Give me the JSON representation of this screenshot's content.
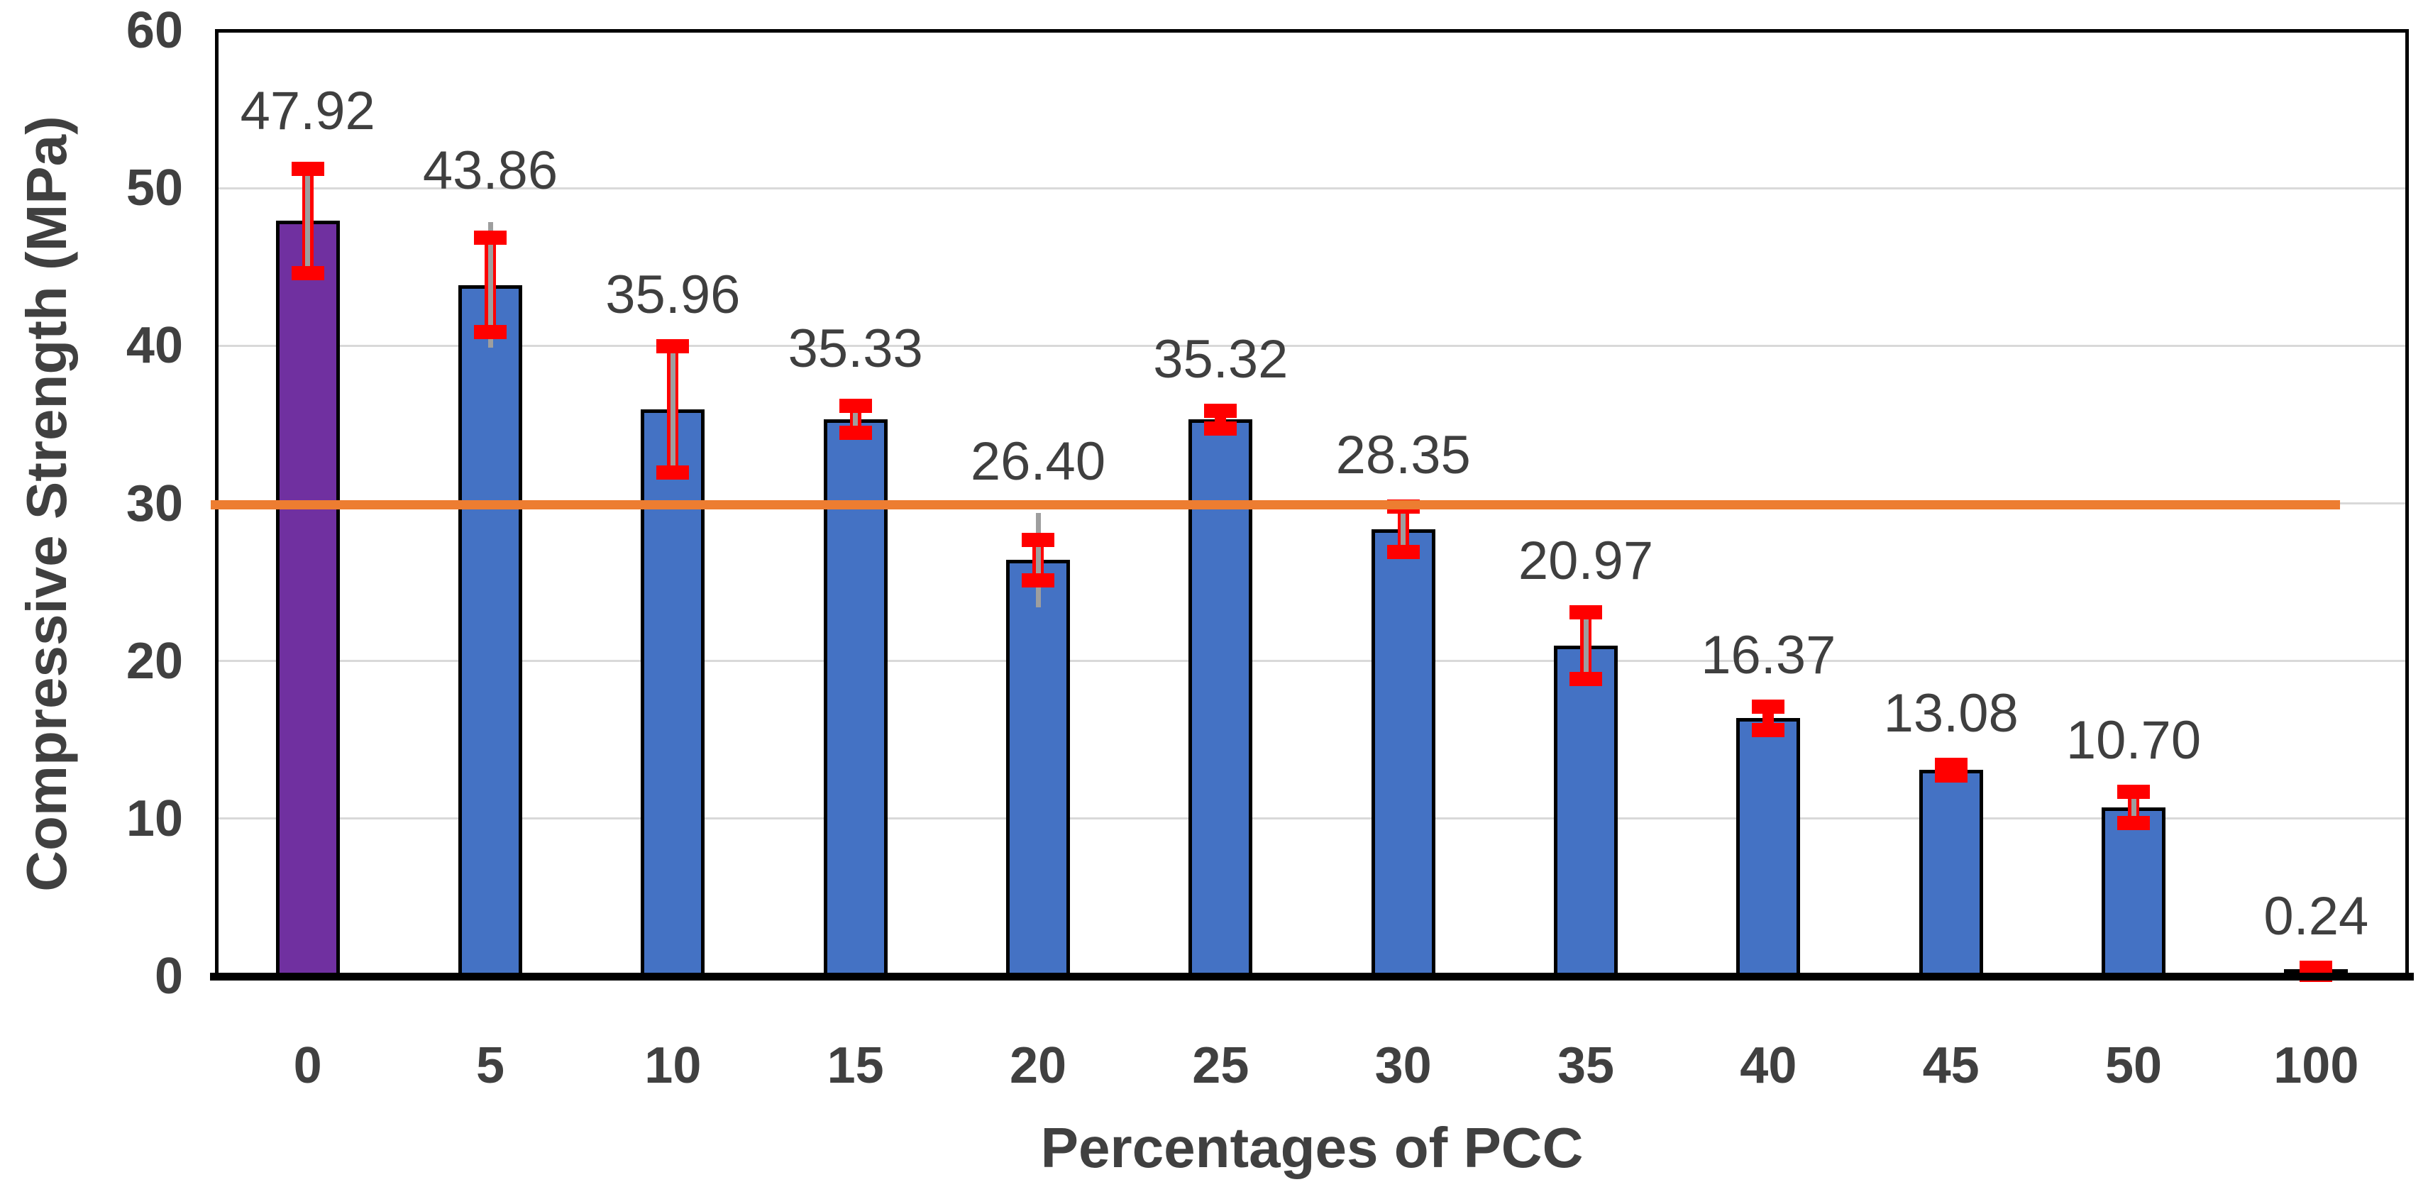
{
  "chart_data": {
    "type": "bar",
    "title": "",
    "xlabel": "Percentages of PCC",
    "ylabel": "Compressive Strength (MPa)",
    "ylim": [
      0,
      60
    ],
    "yticks": [
      0,
      10,
      20,
      30,
      40,
      50,
      60
    ],
    "grid": true,
    "legend": false,
    "categories": [
      "0",
      "5",
      "10",
      "15",
      "20",
      "25",
      "30",
      "35",
      "40",
      "45",
      "50",
      "100"
    ],
    "series": [
      {
        "name": "Compressive strength",
        "values": [
          47.92,
          43.86,
          35.96,
          35.33,
          26.4,
          35.32,
          28.35,
          20.97,
          16.37,
          13.08,
          10.7,
          0.24
        ],
        "data_labels": [
          "47.92",
          "43.86",
          "35.96",
          "35.33",
          "26.40",
          "35.32",
          "28.35",
          "20.97",
          "16.37",
          "13.08",
          "10.70",
          "0.24"
        ],
        "error_bars_plus_minus": [
          3.3,
          3.0,
          4.0,
          0.85,
          1.3,
          0.55,
          1.45,
          2.1,
          0.75,
          0.35,
          1.0,
          0.3
        ],
        "whiskers_plus_minus": [
          3.7,
          4.0,
          4.0,
          1.2,
          3.0,
          0,
          1.45,
          2.1,
          0,
          0,
          1.0,
          0
        ]
      }
    ],
    "reference_line": {
      "value": 29.9
    },
    "colors": {
      "bar": "#4472C4",
      "highlight_bar": "#7030A0",
      "highlight_index": 0,
      "bar_outline": "#000000",
      "error_bar": "#FF0000",
      "whisker": "#9E9E9E",
      "reference_line": "#ED7D31",
      "gridline": "#D9D9D9",
      "text": "#404040",
      "data_label_text": "#3F3F3F"
    }
  }
}
